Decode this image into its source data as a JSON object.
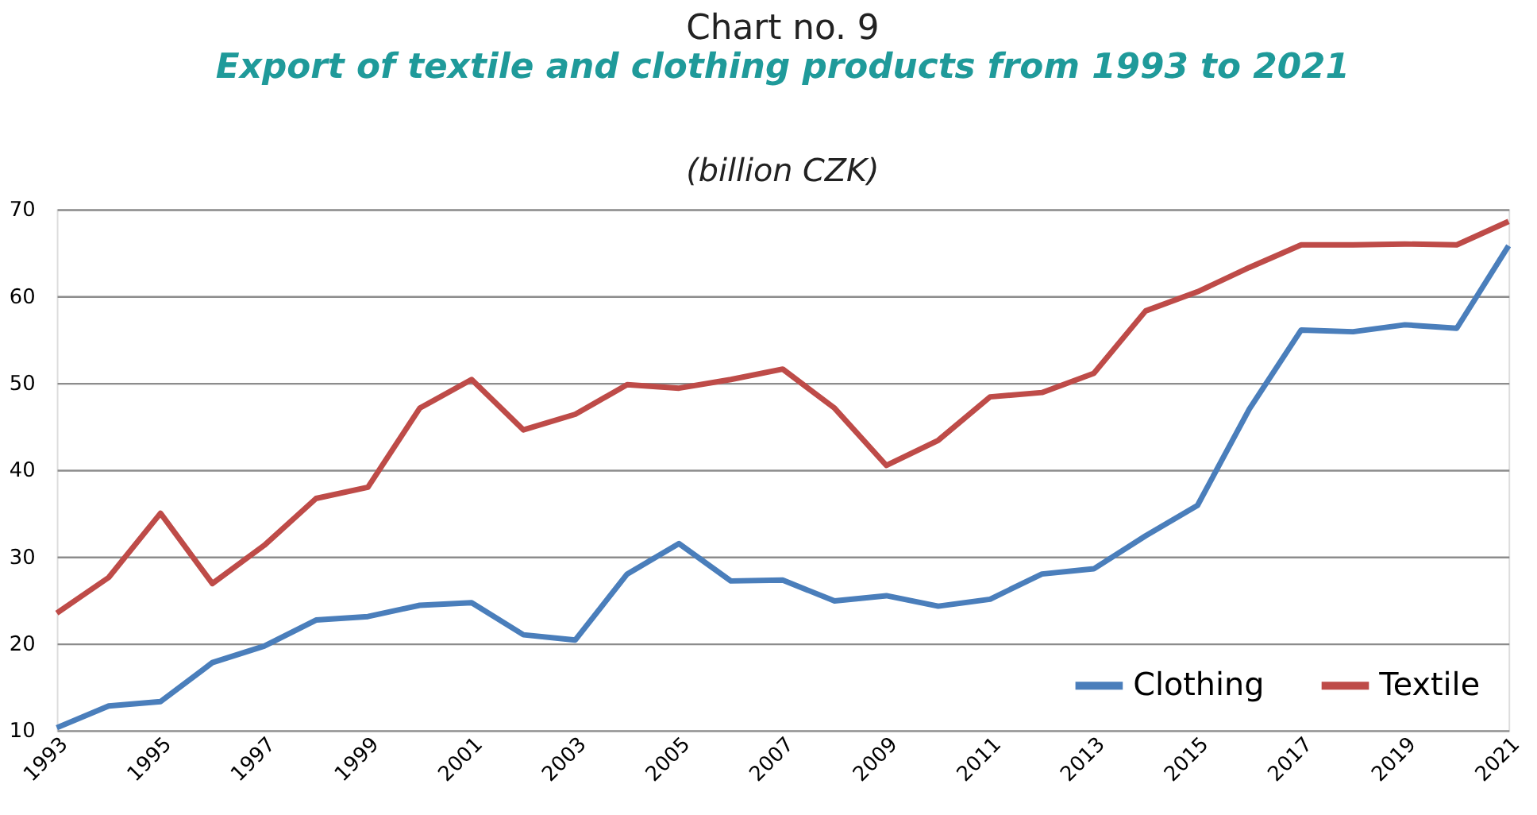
{
  "chart_data": {
    "type": "line",
    "title": "Chart no. 9",
    "subtitle": "Export of textile and clothing products from 1993 to 2021",
    "annotations": [
      "(billion CZK)"
    ],
    "x": [
      1993,
      1994,
      1995,
      1996,
      1997,
      1998,
      1999,
      2000,
      2001,
      2002,
      2003,
      2004,
      2005,
      2006,
      2007,
      2008,
      2009,
      2010,
      2011,
      2012,
      2013,
      2014,
      2015,
      2016,
      2017,
      2018,
      2019,
      2020,
      2021
    ],
    "series": [
      {
        "name": "Clothing",
        "color": "#4a7ebb",
        "values": [
          10.3,
          12.8,
          13.3,
          17.8,
          19.7,
          22.7,
          23.1,
          24.4,
          24.7,
          21.0,
          20.4,
          28.0,
          31.5,
          27.2,
          27.3,
          24.9,
          25.5,
          24.3,
          25.1,
          28.0,
          28.6,
          32.4,
          35.9,
          47.0,
          56.1,
          55.9,
          56.7,
          56.3,
          65.8
        ]
      },
      {
        "name": "Textile",
        "color": "#be4b48",
        "values": [
          23.5,
          27.6,
          35.0,
          26.9,
          31.3,
          36.7,
          38.0,
          47.1,
          50.4,
          44.6,
          46.4,
          49.8,
          49.4,
          50.4,
          51.6,
          47.1,
          40.5,
          43.4,
          48.4,
          48.9,
          51.1,
          58.3,
          60.5,
          63.3,
          65.9,
          65.9,
          66.0,
          65.9,
          68.6
        ]
      }
    ],
    "xlim": [
      1993,
      2021
    ],
    "xticks": [
      1993,
      1995,
      1997,
      1999,
      2001,
      2003,
      2005,
      2007,
      2009,
      2011,
      2013,
      2015,
      2017,
      2019,
      2021
    ],
    "ylim": [
      10,
      70
    ],
    "yticks": [
      10,
      20,
      30,
      40,
      50,
      60,
      70
    ],
    "grid": "y",
    "legend": "bottom right",
    "marker": "none",
    "line_style": "solid"
  }
}
